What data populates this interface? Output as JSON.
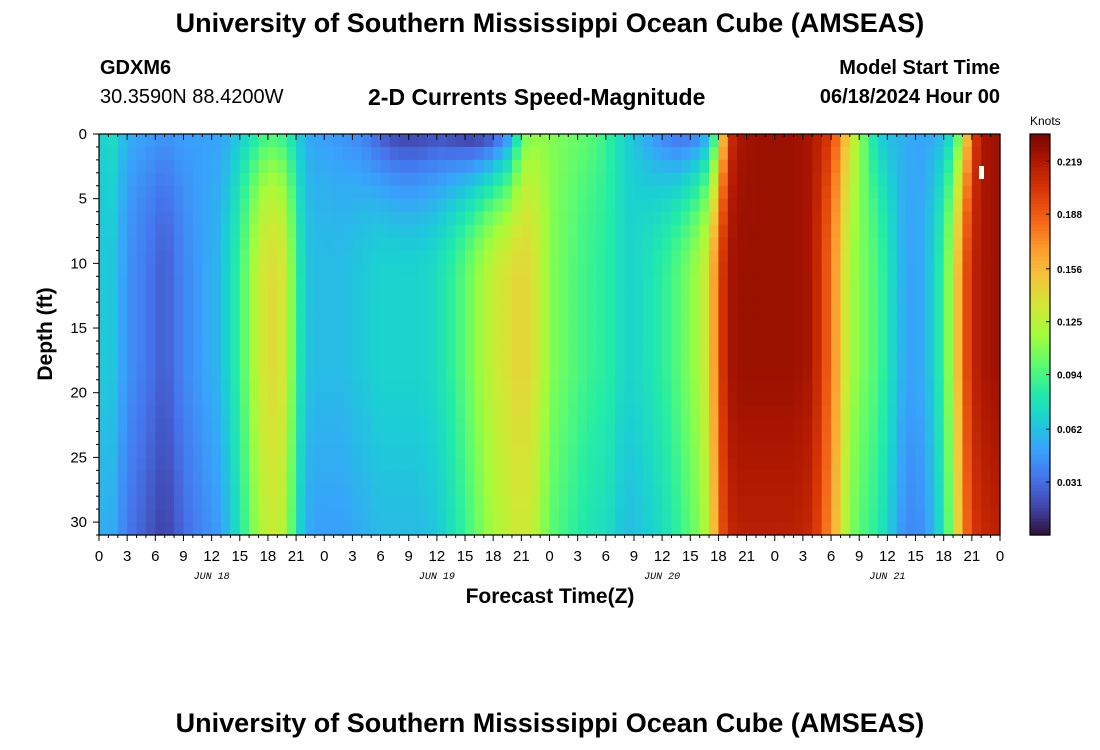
{
  "page_title": "University of Southern Mississippi Ocean Cube (AMSEAS)",
  "station": {
    "id": "GDXM6",
    "coords": "30.3590N  88.4200W"
  },
  "model": {
    "label": "Model Start Time",
    "time": "06/18/2024 Hour 00"
  },
  "chart_data": {
    "type": "heatmap",
    "title": "2-D Currents Speed-Magnitude",
    "xlabel": "Forecast Time(Z)",
    "ylabel": "Depth (ft)",
    "x_range_hours": [
      0,
      96
    ],
    "y_range_ft": [
      0,
      31
    ],
    "y_ticks": [
      0,
      5,
      10,
      15,
      20,
      25,
      30
    ],
    "x_tick_labels": [
      "0",
      "3",
      "6",
      "9",
      "12",
      "15",
      "18",
      "21",
      "0",
      "3",
      "6",
      "9",
      "12",
      "15",
      "18",
      "21",
      "0",
      "3",
      "6",
      "9",
      "12",
      "15",
      "18",
      "21",
      "0",
      "3",
      "6",
      "9",
      "12",
      "15",
      "18",
      "21",
      "0"
    ],
    "date_labels": [
      {
        "label": "JUN 18",
        "hour": 12
      },
      {
        "label": "JUN 19",
        "hour": 36
      },
      {
        "label": "JUN 20",
        "hour": 60
      },
      {
        "label": "JUN 21",
        "hour": 84
      }
    ],
    "colorbar": {
      "unit": "Knots",
      "min": 0.0,
      "max": 0.235,
      "tick_values": [
        "0.219",
        "0.188",
        "0.156",
        "0.125",
        "0.094",
        "0.062",
        "0.031"
      ],
      "colors": [
        "#30123b",
        "#4145ab",
        "#4675ed",
        "#39a2fc",
        "#1bcfd4",
        "#24eca6",
        "#61fc6c",
        "#a4fc3b",
        "#d1e834",
        "#f3c63a",
        "#fe9b2d",
        "#f36315",
        "#d93806",
        "#b11901",
        "#7a0402"
      ]
    },
    "time_profile_hours": [
      0,
      1,
      3,
      5,
      7,
      9,
      11,
      13,
      15,
      17,
      18,
      19,
      20,
      21,
      22,
      23,
      24,
      26,
      28,
      30,
      32,
      34,
      36,
      38,
      40,
      42,
      44,
      45,
      46,
      47,
      48,
      50,
      52,
      54,
      55,
      56,
      58,
      60,
      62,
      64,
      65,
      66,
      67,
      68,
      70,
      72,
      74,
      76,
      78,
      80,
      82,
      83,
      84,
      86,
      88,
      90,
      91,
      92,
      93,
      94,
      96
    ],
    "surface_speed_knots": [
      0.06,
      0.08,
      0.055,
      0.05,
      0.045,
      0.05,
      0.05,
      0.05,
      0.065,
      0.085,
      0.095,
      0.092,
      0.085,
      0.07,
      0.055,
      0.05,
      0.05,
      0.045,
      0.04,
      0.025,
      0.015,
      0.015,
      0.02,
      0.015,
      0.01,
      0.02,
      0.05,
      0.1,
      0.11,
      0.112,
      0.11,
      0.105,
      0.1,
      0.09,
      0.08,
      0.07,
      0.055,
      0.04,
      0.03,
      0.04,
      0.06,
      0.11,
      0.2,
      0.22,
      0.225,
      0.225,
      0.225,
      0.22,
      0.2,
      0.14,
      0.09,
      0.07,
      0.06,
      0.055,
      0.05,
      0.06,
      0.08,
      0.12,
      0.19,
      0.22,
      0.225
    ],
    "deep_speed_knots": [
      0.06,
      0.07,
      0.045,
      0.035,
      0.025,
      0.04,
      0.05,
      0.06,
      0.09,
      0.13,
      0.14,
      0.14,
      0.13,
      0.09,
      0.065,
      0.06,
      0.06,
      0.06,
      0.065,
      0.07,
      0.07,
      0.07,
      0.075,
      0.09,
      0.11,
      0.13,
      0.14,
      0.145,
      0.14,
      0.13,
      0.11,
      0.1,
      0.09,
      0.085,
      0.08,
      0.07,
      0.075,
      0.085,
      0.1,
      0.12,
      0.14,
      0.19,
      0.22,
      0.225,
      0.225,
      0.225,
      0.225,
      0.22,
      0.18,
      0.12,
      0.1,
      0.095,
      0.08,
      0.05,
      0.055,
      0.09,
      0.13,
      0.18,
      0.21,
      0.22,
      0.225
    ]
  },
  "icons": {
    "marker": "data-marker-icon"
  }
}
